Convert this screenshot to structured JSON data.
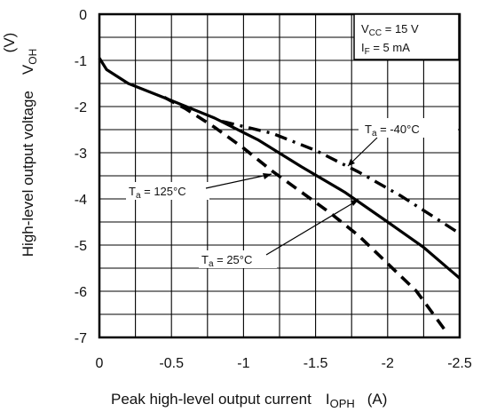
{
  "chart_data": {
    "type": "line",
    "title": "",
    "xlabel": "Peak high-level output current",
    "xlabel_symbol": "I",
    "xlabel_symbol_sub": "OPH",
    "xlabel_unit": "(A)",
    "ylabel": "High-level output voltage",
    "ylabel_unit": "(V)",
    "ylabel_symbol": "V",
    "ylabel_symbol_sub": "OH",
    "xlim": [
      0,
      -2.5
    ],
    "ylim": [
      -7,
      0
    ],
    "xticks": [
      0,
      -0.5,
      -1,
      -1.5,
      -2,
      -2.5
    ],
    "xtick_labels": [
      "0",
      "-0.5",
      "-1",
      "-1.5",
      "-2",
      "-2.5"
    ],
    "yticks": [
      0,
      -1,
      -2,
      -3,
      -4,
      -5,
      -6,
      -7
    ],
    "ytick_labels": [
      "0",
      "-1",
      "-2",
      "-3",
      "-4",
      "-5",
      "-6",
      "-7"
    ],
    "grid": true,
    "conditions": [
      {
        "prefix": "V",
        "sub": "CC",
        "suffix": " = 15 V"
      },
      {
        "prefix": "I",
        "sub": "F",
        "suffix": " = 5 mA"
      }
    ],
    "series": [
      {
        "name": "Ta = -40°C",
        "label_prefix": "T",
        "label_sub": "a",
        "label_suffix": " = -40°C",
        "style": "dash-dot",
        "x": [
          -0.85,
          -1.2,
          -1.5,
          -1.8,
          -2.1,
          -2.5
        ],
        "y": [
          -2.32,
          -2.58,
          -2.95,
          -3.42,
          -3.95,
          -4.75
        ]
      },
      {
        "name": "Ta = 25°C",
        "label_prefix": "T",
        "label_sub": "a",
        "label_suffix": " = 25°C",
        "style": "solid",
        "x": [
          0,
          -0.05,
          -0.2,
          -0.5,
          -0.8,
          -1.1,
          -1.4,
          -1.7,
          -2.0,
          -2.25,
          -2.5
        ],
        "y": [
          -0.95,
          -1.2,
          -1.5,
          -1.87,
          -2.25,
          -2.72,
          -3.3,
          -3.85,
          -4.5,
          -5.05,
          -5.72
        ]
      },
      {
        "name": "Ta = 125°C",
        "label_prefix": "T",
        "label_sub": "a",
        "label_suffix": " = 125°C",
        "style": "dashed",
        "x": [
          -0.45,
          -0.6,
          -0.8,
          -1.0,
          -1.2,
          -1.4,
          -1.6,
          -1.8,
          -2.0,
          -2.2,
          -2.4
        ],
        "y": [
          -1.8,
          -2.05,
          -2.45,
          -2.9,
          -3.4,
          -3.85,
          -4.3,
          -4.8,
          -5.4,
          -6.0,
          -6.85
        ]
      }
    ]
  }
}
